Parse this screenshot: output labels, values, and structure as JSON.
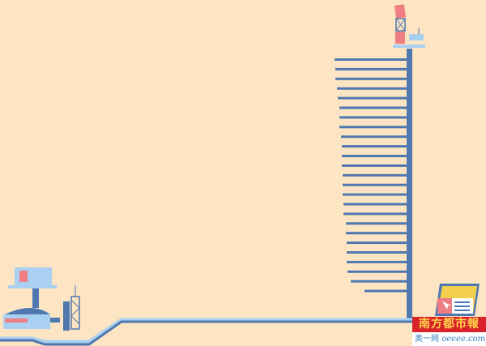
{
  "branding": {
    "newspaper_logo": "南方都市報",
    "site_name": "奥一网",
    "site_domain": "oeeee.com"
  },
  "colors": {
    "background": "#fde5c4",
    "structure_blue": "#4f78b0",
    "light_blue": "#a9d0f0",
    "accent_pink": "#ef7d84",
    "accent_yellow": "#f2cf4e",
    "logo_red": "#d8232a"
  }
}
